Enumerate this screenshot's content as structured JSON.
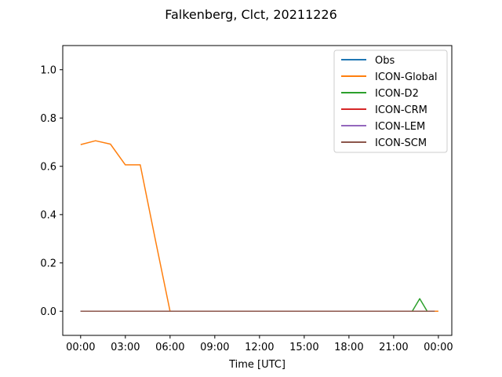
{
  "chart_data": {
    "type": "line",
    "title": "Falkenberg, Clct, 20211226",
    "xlabel": "Time [UTC]",
    "ylabel": "",
    "xlim": [
      -1.2,
      24.9
    ],
    "ylim": [
      -0.1,
      1.1
    ],
    "xticks": [
      0,
      3,
      6,
      9,
      12,
      15,
      18,
      21,
      24
    ],
    "xtick_labels": [
      "00:00",
      "03:00",
      "06:00",
      "09:00",
      "12:00",
      "15:00",
      "18:00",
      "21:00",
      "00:00"
    ],
    "yticks": [
      0.0,
      0.2,
      0.4,
      0.6,
      0.8,
      1.0
    ],
    "ytick_labels": [
      "0.0",
      "0.2",
      "0.4",
      "0.6",
      "0.8",
      "1.0"
    ],
    "legend_position": "top-right",
    "grid": false,
    "series": [
      {
        "name": "Obs",
        "color": "#1f77b4",
        "x": [
          0,
          23.75
        ],
        "y": [
          0,
          0
        ]
      },
      {
        "name": "ICON-Global",
        "color": "#ff7f0e",
        "x": [
          0,
          1,
          2,
          3,
          4,
          5,
          6,
          7,
          8,
          9,
          10,
          11,
          12,
          13,
          14,
          15,
          16,
          17,
          18,
          19,
          20,
          21,
          22,
          23,
          24
        ],
        "y": [
          0.69,
          0.706,
          0.692,
          0.606,
          0.606,
          0.3,
          0.0,
          0,
          0,
          0,
          0,
          0,
          0,
          0,
          0,
          0,
          0,
          0,
          0,
          0,
          0,
          0,
          0,
          0,
          0
        ]
      },
      {
        "name": "ICON-D2",
        "color": "#2ca02c",
        "x": [
          0,
          1,
          2,
          3,
          4,
          5,
          6,
          7,
          8,
          9,
          10,
          11,
          12,
          13,
          14,
          15,
          16,
          17,
          18,
          19,
          20,
          21,
          22,
          22.25,
          22.75,
          23.25,
          23.75
        ],
        "y": [
          0,
          0,
          0,
          0,
          0,
          0,
          0,
          0,
          0,
          0,
          0,
          0,
          0,
          0,
          0,
          0,
          0,
          0,
          0,
          0,
          0,
          0,
          0,
          0,
          0.052,
          0,
          0
        ]
      },
      {
        "name": "ICON-CRM",
        "color": "#d62728",
        "x": [
          0,
          23.75
        ],
        "y": [
          0,
          0
        ]
      },
      {
        "name": "ICON-LEM",
        "color": "#9467bd",
        "x": [
          0,
          23.75
        ],
        "y": [
          0,
          0
        ]
      },
      {
        "name": "ICON-SCM",
        "color": "#8c564b",
        "x": [
          0,
          23.75
        ],
        "y": [
          0,
          0
        ]
      }
    ]
  }
}
